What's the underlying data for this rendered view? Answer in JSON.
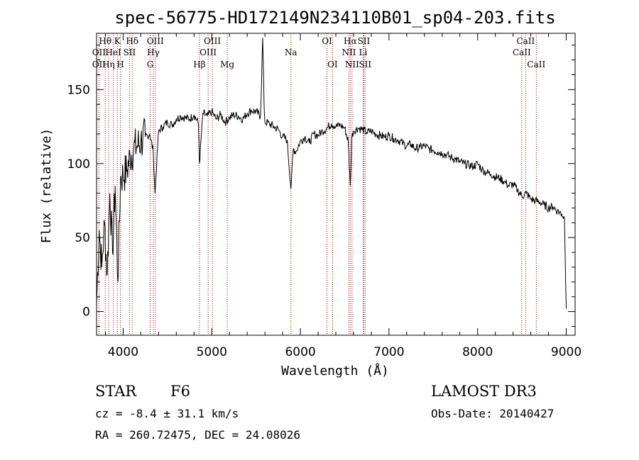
{
  "chart_data": {
    "type": "line",
    "title": "spec-56775-HD172149N234110B01_sp04-203.fits",
    "xlabel": "Wavelength (Å)",
    "ylabel": "Flux (relative)",
    "xlim": [
      3700,
      9100
    ],
    "ylim": [
      -16,
      188
    ],
    "x_ticks": [
      4000,
      5000,
      6000,
      7000,
      8000,
      9000
    ],
    "x_tick_labels": [
      "4000",
      "5000",
      "6000",
      "7000",
      "8000",
      "9000"
    ],
    "y_ticks": [
      0,
      50,
      100,
      150
    ],
    "y_tick_labels": [
      "0",
      "50",
      "100",
      "150"
    ],
    "series": [
      {
        "name": "flux",
        "color": "#000000",
        "x": [
          3700,
          3730,
          3760,
          3790,
          3820,
          3850,
          3880,
          3910,
          3940,
          3970,
          4000,
          4040,
          4080,
          4120,
          4160,
          4200,
          4250,
          4300,
          4340,
          4360,
          4400,
          4450,
          4500,
          4550,
          4600,
          4650,
          4700,
          4750,
          4800,
          4850,
          4861,
          4900,
          4950,
          5000,
          5050,
          5100,
          5150,
          5200,
          5250,
          5300,
          5350,
          5400,
          5450,
          5500,
          5550,
          5575,
          5590,
          5600,
          5650,
          5700,
          5750,
          5800,
          5850,
          5893,
          5920,
          5950,
          6000,
          6050,
          6100,
          6150,
          6200,
          6250,
          6300,
          6350,
          6400,
          6450,
          6500,
          6540,
          6563,
          6580,
          6600,
          6650,
          6700,
          6750,
          6800,
          6850,
          6900,
          6950,
          7000,
          7050,
          7100,
          7150,
          7200,
          7250,
          7300,
          7350,
          7400,
          7450,
          7500,
          7550,
          7600,
          7650,
          7700,
          7750,
          7800,
          7850,
          7900,
          7950,
          8000,
          8050,
          8100,
          8150,
          8200,
          8250,
          8300,
          8350,
          8400,
          8450,
          8500,
          8550,
          8600,
          8650,
          8700,
          8750,
          8800,
          8850,
          8900,
          8950,
          8980,
          9000
        ],
        "y": [
          5,
          55,
          30,
          60,
          25,
          80,
          40,
          85,
          20,
          90,
          92,
          95,
          105,
          110,
          112,
          115,
          118,
          120,
          108,
          80,
          122,
          125,
          128,
          126,
          130,
          132,
          131,
          130,
          133,
          127,
          100,
          134,
          132,
          135,
          130,
          133,
          128,
          131,
          133,
          132,
          130,
          134,
          136,
          135,
          132,
          185,
          140,
          128,
          127,
          125,
          123,
          118,
          116,
          83,
          110,
          108,
          115,
          118,
          114,
          120,
          119,
          122,
          124,
          127,
          125,
          126,
          124,
          115,
          85,
          118,
          122,
          124,
          123,
          121,
          122,
          120,
          119,
          118,
          119,
          117,
          116,
          114,
          112,
          113,
          110,
          111,
          112,
          110,
          109,
          108,
          107,
          106,
          104,
          103,
          101,
          100,
          99,
          98,
          100,
          96,
          94,
          93,
          91,
          90,
          88,
          85,
          86,
          82,
          78,
          80,
          76,
          75,
          74,
          72,
          70,
          71,
          68,
          66,
          63,
          2
        ]
      }
    ],
    "spectral_lines": [
      {
        "label": "Hθ",
        "wavelength": 3798,
        "row": 1
      },
      {
        "label": "OII",
        "wavelength": 3727,
        "row": 2
      },
      {
        "label": "OII",
        "wavelength": 3727,
        "row": 3
      },
      {
        "label": "HeI",
        "wavelength": 3889,
        "row": 2
      },
      {
        "label": "Hη",
        "wavelength": 3835,
        "row": 3
      },
      {
        "label": "K",
        "wavelength": 3934,
        "row": 1
      },
      {
        "label": "SII",
        "wavelength": 4072,
        "row": 2
      },
      {
        "label": "H",
        "wavelength": 3969,
        "row": 3
      },
      {
        "label": "Hδ",
        "wavelength": 4102,
        "row": 1
      },
      {
        "label": "OIII",
        "wavelength": 4363,
        "row": 1
      },
      {
        "label": "Hγ",
        "wavelength": 4341,
        "row": 2
      },
      {
        "label": "G",
        "wavelength": 4305,
        "row": 3
      },
      {
        "label": "OIII",
        "wavelength": 5007,
        "row": 1
      },
      {
        "label": "OIII",
        "wavelength": 4959,
        "row": 2
      },
      {
        "label": "Hβ",
        "wavelength": 4861,
        "row": 3
      },
      {
        "label": "Mg",
        "wavelength": 5175,
        "row": 3
      },
      {
        "label": "Na",
        "wavelength": 5893,
        "row": 2
      },
      {
        "label": "OI",
        "wavelength": 6300,
        "row": 1
      },
      {
        "label": "OI",
        "wavelength": 6363,
        "row": 3
      },
      {
        "label": "Hα",
        "wavelength": 6563,
        "row": 1
      },
      {
        "label": "SII",
        "wavelength": 6716,
        "row": 1
      },
      {
        "label": "NII",
        "wavelength": 6548,
        "row": 2
      },
      {
        "label": "Li",
        "wavelength": 6708,
        "row": 2
      },
      {
        "label": "NII",
        "wavelength": 6583,
        "row": 3
      },
      {
        "label": "SII",
        "wavelength": 6731,
        "row": 3
      },
      {
        "label": "CaII",
        "wavelength": 8542,
        "row": 1
      },
      {
        "label": "CaII",
        "wavelength": 8498,
        "row": 2
      },
      {
        "label": "CaII",
        "wavelength": 8662,
        "row": 3
      }
    ],
    "line_color": "#b00000"
  },
  "info": {
    "object_class": "STAR",
    "subclass": "F6",
    "survey": "LAMOST DR3",
    "redshift": "cz = -8.4 ± 31.1 km/s",
    "obs_date": "Obs-Date: 20140427",
    "coords": "RA = 260.72475, DEC =  24.08026"
  }
}
